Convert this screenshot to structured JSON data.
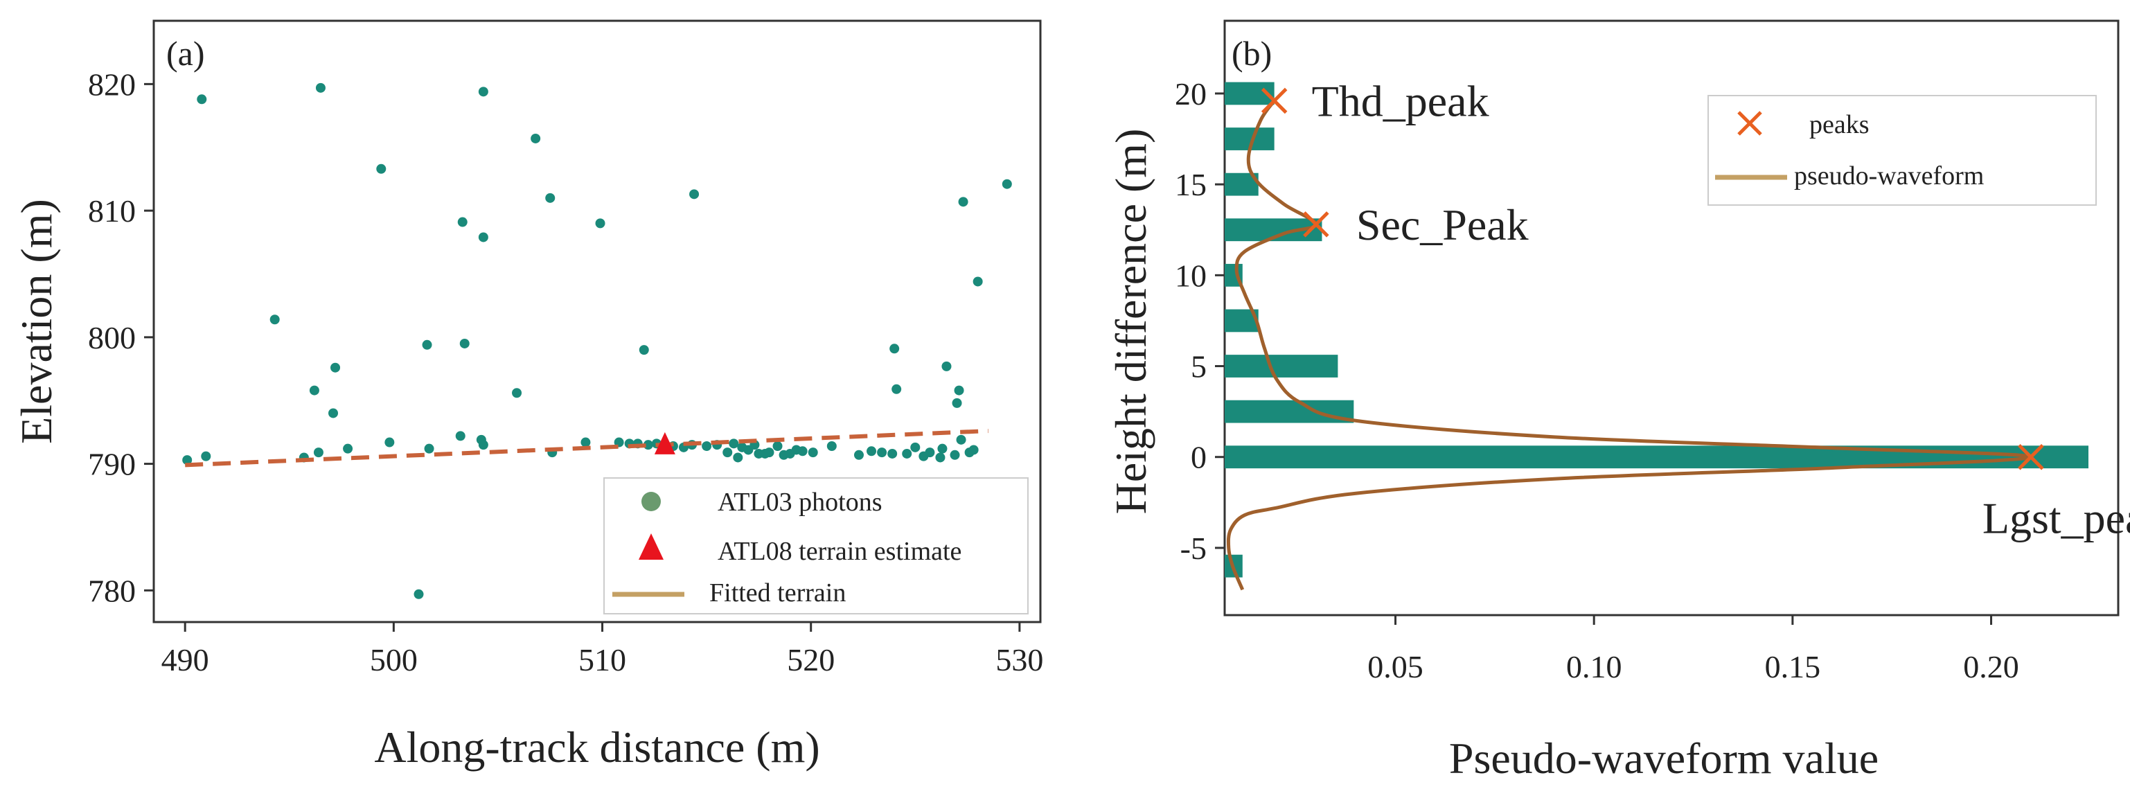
{
  "chart_data": [
    {
      "panel": "(a)",
      "type": "scatter",
      "xlabel": "Along-track distance (m)",
      "ylabel": "Elevation (m)",
      "xlim": [
        488.5,
        531
      ],
      "ylim": [
        777.5,
        825
      ],
      "xticks": [
        490,
        500,
        510,
        520,
        530
      ],
      "yticks": [
        780,
        790,
        800,
        810,
        820
      ],
      "grid": false,
      "legend_position": "bottom-right",
      "legend": [
        {
          "label": "ATL03 photons",
          "marker": "circle"
        },
        {
          "label": "ATL08 terrain estimate",
          "marker": "triangle"
        },
        {
          "label": "Fitted terrain",
          "marker": "line"
        }
      ],
      "photons": {
        "x": [
          490.1,
          490.8,
          491.0,
          494.3,
          495.7,
          496.2,
          496.4,
          496.5,
          497.1,
          497.2,
          497.8,
          499.4,
          499.8,
          501.2,
          501.6,
          501.7,
          503.2,
          503.3,
          503.4,
          504.2,
          504.3,
          504.3,
          504.3,
          505.9,
          506.8,
          507.5,
          507.6,
          509.2,
          509.9,
          510.8,
          511.3,
          511.7,
          512.0,
          512.2,
          512.6,
          513.4,
          513.9,
          514.3,
          514.4,
          515.0,
          515.5,
          516.0,
          516.3,
          516.5,
          516.7,
          517.0,
          517.3,
          517.5,
          517.8,
          518.0,
          518.4,
          518.7,
          519.0,
          519.3,
          519.6,
          520.1,
          521.0,
          522.3,
          522.9,
          523.4,
          523.9,
          524.0,
          524.1,
          524.6,
          525.0,
          525.4,
          525.7,
          526.2,
          526.3,
          526.5,
          526.9,
          527.0,
          527.1,
          527.2,
          527.3,
          527.6,
          527.8,
          528.0,
          529.4
        ],
        "y": [
          790.3,
          818.8,
          790.6,
          801.4,
          790.5,
          795.8,
          790.9,
          819.7,
          794.0,
          797.6,
          791.2,
          813.3,
          791.7,
          779.7,
          799.4,
          791.2,
          792.2,
          809.1,
          799.5,
          791.9,
          791.5,
          807.9,
          819.4,
          795.6,
          815.7,
          811.0,
          790.9,
          791.7,
          809.0,
          791.7,
          791.6,
          791.6,
          799.0,
          791.5,
          791.6,
          791.4,
          791.3,
          791.5,
          811.3,
          791.4,
          791.5,
          790.9,
          791.6,
          790.5,
          791.3,
          791.1,
          791.5,
          790.8,
          790.8,
          790.9,
          791.4,
          790.7,
          790.8,
          791.1,
          791.0,
          790.9,
          791.4,
          790.7,
          791.0,
          790.9,
          790.8,
          799.1,
          795.9,
          790.8,
          791.3,
          790.6,
          790.9,
          790.5,
          791.2,
          797.7,
          790.7,
          794.8,
          795.8,
          791.9,
          810.7,
          790.9,
          791.1,
          804.4,
          812.1
        ]
      },
      "terrain_estimate": {
        "x": 513.0,
        "y": 791.3
      },
      "fitted_terrain": {
        "x": [
          490,
          528.5
        ],
        "y": [
          789.9,
          792.6
        ]
      }
    },
    {
      "panel": "(b)",
      "type": "bar",
      "orientation": "horizontal",
      "xlabel": "Pseudo-waveform value",
      "ylabel": "Height difference (m)",
      "xlim": [
        0.007,
        0.232
      ],
      "ylim": [
        -8.7,
        24
      ],
      "xticks": [
        "0.05",
        "0.10",
        "0.15",
        "0.20"
      ],
      "yticks": [
        -5,
        0,
        5,
        10,
        15,
        20
      ],
      "grid": false,
      "legend_position": "top-right",
      "legend": [
        {
          "label": "peaks",
          "marker": "x"
        },
        {
          "label": "pseudo-waveform",
          "marker": "line"
        }
      ],
      "bins": {
        "center": [
          -6.0,
          0.0,
          2.5,
          5.0,
          7.5,
          10.0,
          12.5,
          15.0,
          17.5,
          20.0
        ],
        "values": [
          0.0115,
          0.2245,
          0.0395,
          0.0355,
          0.0155,
          0.0115,
          0.0315,
          0.0155,
          0.0195,
          0.0195
        ]
      },
      "pseudo_waveform": {
        "x": [
          0.0115,
          0.009,
          0.008,
          0.0085,
          0.012,
          0.02,
          0.04,
          0.09,
          0.16,
          0.21,
          0.16,
          0.09,
          0.04,
          0.026,
          0.02,
          0.017,
          0.015,
          0.012,
          0.01,
          0.012,
          0.022,
          0.03,
          0.022,
          0.015,
          0.013,
          0.016,
          0.0195
        ],
        "y": [
          -7.3,
          -6.0,
          -5.0,
          -4.0,
          -3.2,
          -2.8,
          -2.0,
          -1.2,
          -0.6,
          0.0,
          0.5,
          1.1,
          2.0,
          3.0,
          4.3,
          6.0,
          7.5,
          9.0,
          10.3,
          11.3,
          12.3,
          12.8,
          13.9,
          15.2,
          16.5,
          18.5,
          19.6
        ]
      },
      "peaks": [
        {
          "label": "Thd_peak",
          "x": 0.0195,
          "y": 19.6
        },
        {
          "label": "Sec_Peak",
          "x": 0.03,
          "y": 12.8
        },
        {
          "label": "Lgst_peak",
          "x": 0.21,
          "y": 0.0
        }
      ]
    }
  ],
  "colors": {
    "photon": "#1a8a7a",
    "bar": "#1a8a7a",
    "triangle": "#e8141e",
    "fit_dash": "#c8623a",
    "fit_legend": "#c4a064",
    "waveform": "#a0602c",
    "peak_marker": "#e86020",
    "legend_dot": "#6a9a6e",
    "axis": "#333333"
  }
}
